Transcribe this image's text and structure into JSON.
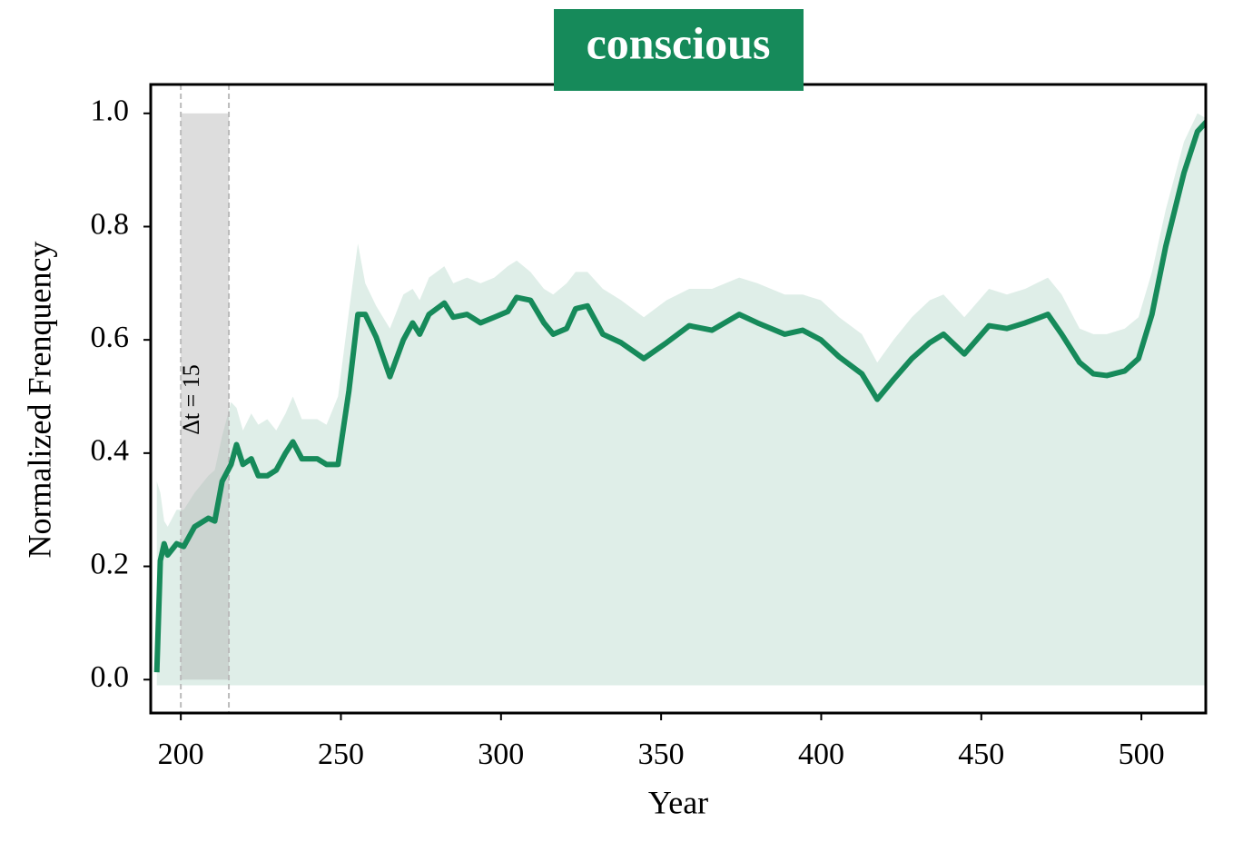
{
  "chart_data": {
    "type": "line",
    "title": "conscious",
    "xlabel": "Year",
    "ylabel": "Normalized Frenquency",
    "color": "#168a5a",
    "band_color": "#dfeee8",
    "x": [
      192.5,
      193.6,
      194.8,
      195.9,
      198.7,
      200.9,
      204.3,
      208.6,
      210.6,
      212.9,
      215.7,
      217.4,
      219.4,
      222,
      224.2,
      227,
      229.8,
      232.7,
      235,
      237.8,
      242.6,
      245.5,
      249.1,
      252.5,
      255.3,
      257.6,
      261,
      265.3,
      269.5,
      272.4,
      274.6,
      277.5,
      282.3,
      285.1,
      289.4,
      293.6,
      297.9,
      302.1,
      304.9,
      309.2,
      313.4,
      316.3,
      320.5,
      323.3,
      327,
      331.8,
      337.5,
      344.6,
      351.7,
      358.8,
      365.9,
      374.4,
      380.1,
      388.6,
      394.2,
      399.9,
      405.6,
      412.7,
      417.5,
      422.6,
      428.3,
      433.9,
      438.2,
      444.7,
      452.4,
      458,
      463.7,
      470.8,
      475.1,
      480.7,
      485,
      489.2,
      494.8,
      499.1,
      503.3,
      507.6,
      513.3,
      517.5,
      520.6
    ],
    "values": [
      0.013,
      0.21,
      0.24,
      0.22,
      0.24,
      0.235,
      0.27,
      0.285,
      0.28,
      0.35,
      0.38,
      0.415,
      0.38,
      0.39,
      0.36,
      0.36,
      0.37,
      0.4,
      0.42,
      0.39,
      0.39,
      0.38,
      0.38,
      0.51,
      0.645,
      0.645,
      0.605,
      0.535,
      0.6,
      0.63,
      0.61,
      0.645,
      0.665,
      0.64,
      0.645,
      0.63,
      0.64,
      0.65,
      0.675,
      0.67,
      0.63,
      0.61,
      0.62,
      0.655,
      0.66,
      0.61,
      0.595,
      0.567,
      0.595,
      0.625,
      0.617,
      0.645,
      0.63,
      0.61,
      0.617,
      0.6,
      0.57,
      0.54,
      0.495,
      0.53,
      0.567,
      0.595,
      0.61,
      0.575,
      0.625,
      0.62,
      0.63,
      0.645,
      0.61,
      0.56,
      0.54,
      0.537,
      0.545,
      0.567,
      0.645,
      0.765,
      0.895,
      0.968,
      0.987
    ],
    "band": {
      "upper": [
        0.35,
        0.33,
        0.28,
        0.27,
        0.3,
        0.3,
        0.33,
        0.36,
        0.37,
        0.43,
        0.49,
        0.48,
        0.44,
        0.47,
        0.45,
        0.46,
        0.44,
        0.47,
        0.5,
        0.46,
        0.46,
        0.45,
        0.5,
        0.65,
        0.77,
        0.7,
        0.66,
        0.62,
        0.68,
        0.69,
        0.67,
        0.71,
        0.73,
        0.7,
        0.71,
        0.7,
        0.71,
        0.73,
        0.74,
        0.72,
        0.69,
        0.68,
        0.7,
        0.72,
        0.72,
        0.69,
        0.67,
        0.64,
        0.67,
        0.69,
        0.69,
        0.71,
        0.7,
        0.68,
        0.68,
        0.67,
        0.64,
        0.61,
        0.56,
        0.6,
        0.64,
        0.67,
        0.68,
        0.64,
        0.69,
        0.68,
        0.69,
        0.71,
        0.68,
        0.62,
        0.61,
        0.61,
        0.62,
        0.64,
        0.72,
        0.83,
        0.95,
        1.0,
        0.99
      ],
      "lower": -0.01
    },
    "highlight": {
      "xrange": [
        200,
        215
      ],
      "yrange": [
        0,
        1.0
      ],
      "label": "Δt = 15"
    },
    "xlim": [
      190.6,
      520.1
    ],
    "ylim": [
      -0.059,
      1.051
    ],
    "xticks": [
      200,
      250,
      300,
      350,
      400,
      450,
      500
    ],
    "yticks": [
      {
        "value": 0,
        "label": "0.0"
      },
      0.2,
      0.4,
      0.6,
      0.8,
      {
        "value": 1,
        "label": "1.0"
      }
    ]
  }
}
